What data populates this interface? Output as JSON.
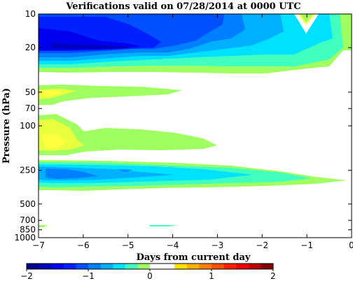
{
  "chart_data": {
    "type": "heatmap",
    "title": "Verifications valid on 07/28/2014 at 0000 UTC",
    "xlabel": "Days from current day",
    "ylabel": "Pressure (hPa)",
    "x_ticks": [
      "−7",
      "−6",
      "−5",
      "−4",
      "−3",
      "−2",
      "−1",
      "0"
    ],
    "x_tick_values": [
      -7,
      -6,
      -5,
      -4,
      -3,
      -2,
      -1,
      0
    ],
    "y_ticks": [
      "10",
      "20",
      "50",
      "70",
      "100",
      "250",
      "500",
      "700",
      "850",
      "1000"
    ],
    "y_tick_values": [
      10,
      20,
      50,
      70,
      100,
      250,
      500,
      700,
      850,
      1000
    ],
    "xlim": [
      -7,
      0
    ],
    "ylim": [
      10,
      1000
    ],
    "y_scale": "log",
    "y_reversed": true,
    "colorbar": {
      "range": [
        -2,
        2
      ],
      "tick_labels": [
        "−2",
        "−1",
        "0",
        "1",
        "2"
      ],
      "tick_values": [
        -2,
        -1,
        0,
        1,
        2
      ],
      "colors": [
        "#00008f",
        "#0000bf",
        "#0000ef",
        "#0020ff",
        "#0050ff",
        "#0080ff",
        "#00b0ff",
        "#00e0ff",
        "#40ffbf",
        "#a0ff60",
        "#ffffff",
        "#ffffff",
        "#ffe000",
        "#ffb000",
        "#ff8000",
        "#ff5000",
        "#ff2000",
        "#ef0000",
        "#bf0000",
        "#800000"
      ]
    },
    "levels": [
      {
        "name": "upper-stratosphere",
        "x_range": [
          -7,
          0
        ],
        "p_range": [
          10,
          32
        ],
        "value_range": [
          -2,
          -0.2
        ]
      },
      {
        "name": "50hPa-band",
        "x_range": [
          -7,
          -3.7
        ],
        "p_range": [
          45,
          63
        ],
        "value_range": [
          -0.5,
          -0.3
        ]
      },
      {
        "name": "100hPa-band",
        "x_range": [
          -7,
          -3
        ],
        "p_range": [
          80,
          170
        ],
        "value_range": [
          -0.5,
          -0.3
        ]
      },
      {
        "name": "250hPa-band",
        "x_range": [
          -7,
          -0.5
        ],
        "p_range": [
          210,
          380
        ],
        "value_range": [
          -1.6,
          -0.2
        ]
      },
      {
        "name": "near-surface",
        "x_range": [
          -7,
          -3.6
        ],
        "p_range": [
          740,
          790
        ],
        "value_range": [
          -0.4,
          -0.2
        ]
      }
    ]
  }
}
